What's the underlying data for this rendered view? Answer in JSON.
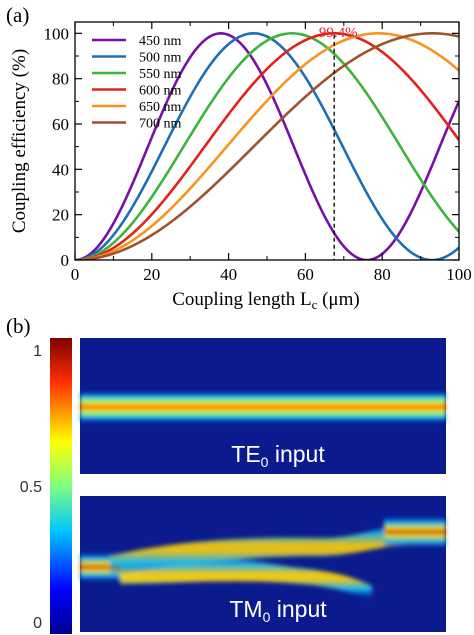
{
  "panels": {
    "a_label": "(a)",
    "b_label": "(b)"
  },
  "chart_data": {
    "type": "line",
    "xlabel_main": "Coupling length L",
    "xlabel_sub": "c",
    "xlabel_unit": " (μm)",
    "ylabel": "Coupling efficiency (%)",
    "xlim": [
      0,
      100
    ],
    "ylim": [
      0,
      105
    ],
    "xticks": [
      0,
      20,
      40,
      60,
      80,
      100
    ],
    "yticks": [
      0,
      20,
      40,
      60,
      80,
      100
    ],
    "legend_position": "top-left",
    "annotation": {
      "text": "99.4%",
      "x": 67.5,
      "color": "#e8202a"
    },
    "series": [
      {
        "name": "450 nm",
        "color": "#7a0fa8",
        "L": 38.0
      },
      {
        "name": "500 nm",
        "color": "#1d6fb5",
        "L": 46.5
      },
      {
        "name": "550 nm",
        "color": "#3cb43c",
        "L": 56.5
      },
      {
        "name": "600 nm",
        "color": "#e2231a",
        "L": 67.5
      },
      {
        "name": "650 nm",
        "color": "#f7941d",
        "L": 79.0
      },
      {
        "name": "700 nm",
        "color": "#a0522d",
        "L": 93.0
      }
    ],
    "colorbar": {
      "ticks": [
        "1",
        "0.5",
        "0"
      ]
    },
    "maps": [
      {
        "label_main": "TE",
        "label_sub": "0",
        "label_rest": " input"
      },
      {
        "label_main": "TM",
        "label_sub": "0",
        "label_rest": " input"
      }
    ]
  }
}
